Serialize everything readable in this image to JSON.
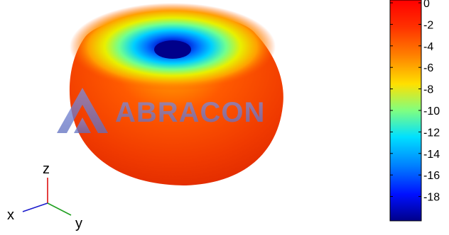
{
  "chart_data": {
    "type": "heatmap",
    "title": "",
    "subtitle": "",
    "colorbar": {
      "min": -20,
      "max": 0,
      "ticks": [
        0,
        -2,
        -4,
        -6,
        -8,
        -10,
        -12,
        -14,
        -16,
        -18
      ],
      "tick_labels": [
        "0",
        "-2",
        "-4",
        "-6",
        "-8",
        "-10",
        "-12",
        "-14",
        "-16",
        "-18"
      ],
      "colormap": "jet"
    },
    "surface": {
      "shape": "toroidal radiation pattern",
      "view": "3D perspective",
      "null_direction": "z"
    },
    "axes_triad": {
      "x": {
        "label": "x",
        "color": "#1a1acc"
      },
      "y": {
        "label": "y",
        "color": "#21a021"
      },
      "z": {
        "label": "z",
        "color": "#dd1111"
      }
    },
    "watermark": {
      "text": "ABRACON",
      "color": "#6f7fd0"
    }
  }
}
